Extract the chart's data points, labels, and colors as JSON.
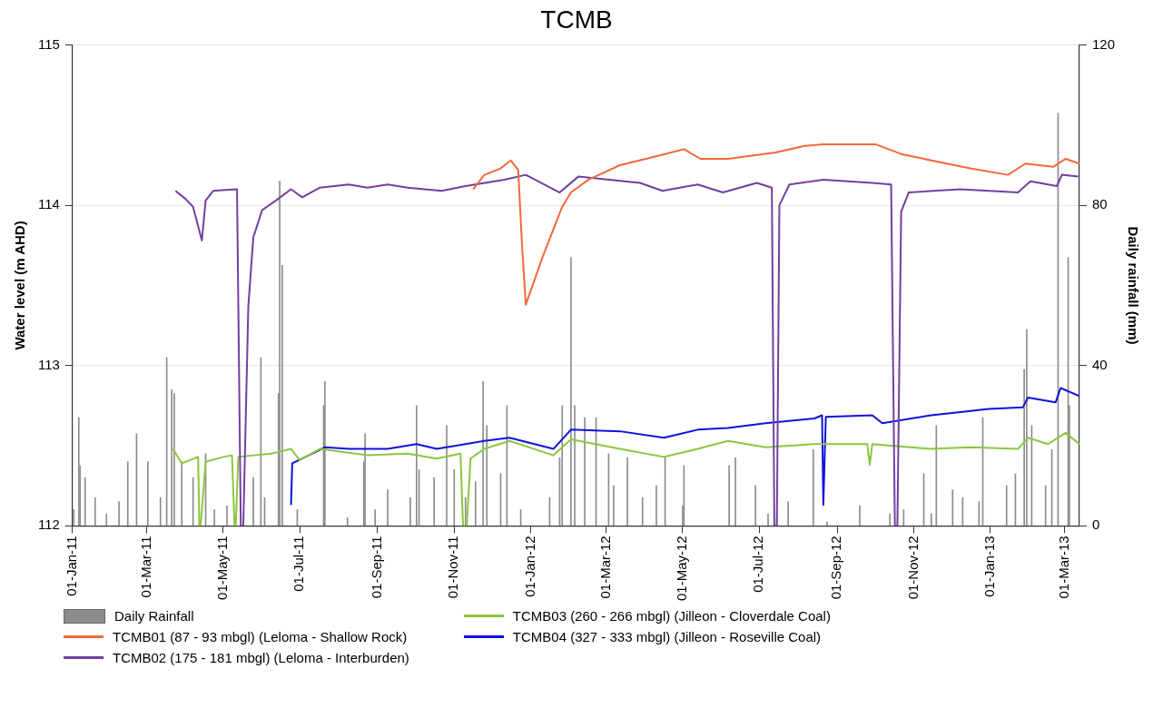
{
  "chart_data": {
    "type": "line",
    "title": "TCMB",
    "ylabel": "Water level (m AHD)",
    "y2label": "Daily rainfall (mm)",
    "xlim": [
      "2011-01-01",
      "2013-03-13"
    ],
    "xticks": [
      {
        "value": "2011-01-01",
        "label": "01-Jan-11"
      },
      {
        "value": "2011-03-01",
        "label": "01-Mar-11"
      },
      {
        "value": "2011-05-01",
        "label": "01-May-11"
      },
      {
        "value": "2011-07-01",
        "label": "01-Jul-11"
      },
      {
        "value": "2011-09-01",
        "label": "01-Sep-11"
      },
      {
        "value": "2011-11-01",
        "label": "01-Nov-11"
      },
      {
        "value": "2012-01-01",
        "label": "01-Jan-12"
      },
      {
        "value": "2012-03-01",
        "label": "01-Mar-12"
      },
      {
        "value": "2012-05-01",
        "label": "01-May-12"
      },
      {
        "value": "2012-07-01",
        "label": "01-Jul-12"
      },
      {
        "value": "2012-09-01",
        "label": "01-Sep-12"
      },
      {
        "value": "2012-11-01",
        "label": "01-Nov-12"
      },
      {
        "value": "2013-01-01",
        "label": "01-Jan-13"
      },
      {
        "value": "2013-03-01",
        "label": "01-Mar-13"
      }
    ],
    "ylim": [
      112,
      115
    ],
    "yticks": [
      112,
      113,
      114,
      115
    ],
    "y2lim": [
      0,
      120
    ],
    "y2ticks": [
      0,
      40,
      80,
      120
    ],
    "grid": "y",
    "legend": "bottom left",
    "marker": "none",
    "series": [
      {
        "name": "Daily Rainfall",
        "type": "bar",
        "axis": "y2",
        "color": "#8c8c8c",
        "x": [
          "2011-01-02",
          "2011-01-06",
          "2011-01-07",
          "2011-01-11",
          "2011-01-19",
          "2011-01-28",
          "2011-02-07",
          "2011-02-14",
          "2011-02-21",
          "2011-03-02",
          "2011-03-12",
          "2011-03-17",
          "2011-03-21",
          "2011-03-23",
          "2011-03-29",
          "2011-04-07",
          "2011-04-17",
          "2011-04-24",
          "2011-05-04",
          "2011-05-25",
          "2011-05-31",
          "2011-06-03",
          "2011-06-14",
          "2011-06-15",
          "2011-06-17",
          "2011-06-29",
          "2011-07-20",
          "2011-07-21",
          "2011-08-08",
          "2011-08-21",
          "2011-08-22",
          "2011-08-30",
          "2011-09-09",
          "2011-09-27",
          "2011-10-02",
          "2011-10-04",
          "2011-10-16",
          "2011-10-26",
          "2011-11-01",
          "2011-11-10",
          "2011-11-18",
          "2011-11-24",
          "2011-11-27",
          "2011-12-08",
          "2011-12-13",
          "2011-12-24",
          "2012-01-16",
          "2012-01-24",
          "2012-01-26",
          "2012-02-02",
          "2012-02-05",
          "2012-02-13",
          "2012-02-22",
          "2012-03-03",
          "2012-03-07",
          "2012-03-18",
          "2012-03-30",
          "2012-04-10",
          "2012-04-17",
          "2012-05-01",
          "2012-05-02",
          "2012-06-07",
          "2012-06-12",
          "2012-06-28",
          "2012-07-08",
          "2012-07-24",
          "2012-08-13",
          "2012-08-24",
          "2012-09-19",
          "2012-10-13",
          "2012-10-24",
          "2012-11-09",
          "2012-11-15",
          "2012-11-19",
          "2012-12-02",
          "2012-12-10",
          "2012-12-23",
          "2012-12-26",
          "2013-01-14",
          "2013-01-21",
          "2013-01-28",
          "2013-01-30",
          "2013-02-03",
          "2013-02-14",
          "2013-02-19",
          "2013-02-24",
          "2013-03-04",
          "2013-03-05"
        ],
        "values": [
          4,
          27,
          15,
          12,
          7,
          3,
          6,
          16,
          23,
          16,
          7,
          42,
          34,
          33,
          16,
          12,
          18,
          4,
          5,
          12,
          42,
          7,
          33,
          86,
          65,
          4,
          30,
          36,
          2,
          16,
          23,
          4,
          9,
          7,
          30,
          14,
          12,
          25,
          14,
          7,
          11,
          36,
          25,
          13,
          30,
          4,
          7,
          17,
          30,
          67,
          30,
          27,
          27,
          18,
          10,
          17,
          7,
          10,
          17,
          5,
          15,
          15,
          17,
          10,
          3,
          6,
          19,
          1,
          5,
          3,
          4,
          13,
          3,
          25,
          9,
          7,
          6,
          27,
          10,
          13,
          39,
          49,
          25,
          10,
          19,
          103,
          67,
          30
        ]
      },
      {
        "name": "TCMB01 (87 - 93 mbgl) (Leloma - Shallow Rock)",
        "color": "#f4683a",
        "x": [
          "2011-11-16",
          "2011-11-25",
          "2011-12-08",
          "2011-12-16",
          "2011-12-22",
          "2011-12-25",
          "2011-12-28",
          "2012-01-11",
          "2012-01-26",
          "2012-02-02",
          "2012-02-16",
          "2012-03-12",
          "2012-04-12",
          "2012-05-02",
          "2012-05-15",
          "2012-06-06",
          "2012-07-14",
          "2012-08-06",
          "2012-08-21",
          "2012-10-02",
          "2012-10-22",
          "2012-11-15",
          "2012-12-16",
          "2013-01-15",
          "2013-01-29",
          "2013-02-20",
          "2013-03-02",
          "2013-03-13"
        ],
        "values": [
          114.1,
          114.19,
          114.23,
          114.28,
          114.22,
          113.75,
          113.38,
          113.69,
          113.99,
          114.08,
          114.16,
          114.25,
          114.31,
          114.35,
          114.29,
          114.29,
          114.33,
          114.37,
          114.38,
          114.38,
          114.32,
          114.28,
          114.23,
          114.19,
          114.26,
          114.24,
          114.29,
          114.26
        ]
      },
      {
        "name": "TCMB02 (175 - 181 mbgl) (Leloma - Interburden)",
        "color": "#7040a0",
        "x": [
          "2011-03-24",
          "2011-04-01",
          "2011-04-07",
          "2011-04-14",
          "2011-04-17",
          "2011-04-23",
          "2011-05-12",
          "2011-05-15",
          "2011-05-17",
          "2011-05-21",
          "2011-05-25",
          "2011-06-01",
          "2011-06-12",
          "2011-06-24",
          "2011-07-03",
          "2011-07-17",
          "2011-08-09",
          "2011-08-24",
          "2011-09-09",
          "2011-09-25",
          "2011-10-22",
          "2011-11-10",
          "2011-12-11",
          "2011-12-28",
          "2012-01-24",
          "2012-02-08",
          "2012-03-28",
          "2012-04-15",
          "2012-05-13",
          "2012-06-02",
          "2012-06-29",
          "2012-07-11",
          "2012-07-13",
          "2012-07-15",
          "2012-07-17",
          "2012-07-25",
          "2012-08-21",
          "2012-09-29",
          "2012-10-14",
          "2012-10-17",
          "2012-10-19",
          "2012-10-22",
          "2012-10-28",
          "2012-12-08",
          "2013-01-23",
          "2013-02-02",
          "2013-02-23",
          "2013-02-27",
          "2013-03-12"
        ],
        "values": [
          114.09,
          114.04,
          113.99,
          113.78,
          114.03,
          114.09,
          114.1,
          112.0,
          112.0,
          113.37,
          113.8,
          113.97,
          114.03,
          114.1,
          114.05,
          114.11,
          114.13,
          114.11,
          114.13,
          114.11,
          114.09,
          114.12,
          114.16,
          114.19,
          114.08,
          114.18,
          114.14,
          114.09,
          114.13,
          114.08,
          114.14,
          114.11,
          112.0,
          112.0,
          114.0,
          114.13,
          114.16,
          114.14,
          114.13,
          112.0,
          112.0,
          113.96,
          114.08,
          114.1,
          114.08,
          114.15,
          114.12,
          114.19,
          114.18
        ]
      },
      {
        "name": "TCMB03 (260 - 266 mbgl) (Jilleon - Cloverdale Coal)",
        "color": "#8cc63f",
        "x": [
          "2011-03-22",
          "2011-03-29",
          "2011-04-11",
          "2011-04-12",
          "2011-04-13",
          "2011-04-17",
          "2011-05-01",
          "2011-05-08",
          "2011-05-10",
          "2011-05-11",
          "2011-05-13",
          "2011-06-08",
          "2011-06-24",
          "2011-07-01",
          "2011-07-17",
          "2011-08-24",
          "2011-09-25",
          "2011-10-18",
          "2011-11-06",
          "2011-11-08",
          "2011-11-11",
          "2011-11-14",
          "2011-11-25",
          "2011-12-15",
          "2012-01-19",
          "2012-02-02",
          "2012-03-12",
          "2012-04-16",
          "2012-05-13",
          "2012-06-06",
          "2012-07-06",
          "2012-08-14",
          "2012-09-25",
          "2012-09-27",
          "2012-09-29",
          "2012-11-15",
          "2012-12-16",
          "2013-01-23",
          "2013-01-31",
          "2013-02-16",
          "2013-03-02",
          "2013-03-13"
        ],
        "values": [
          112.48,
          112.39,
          112.43,
          112.0,
          112.0,
          112.4,
          112.43,
          112.44,
          112.0,
          112.0,
          112.43,
          112.45,
          112.48,
          112.41,
          112.48,
          112.44,
          112.45,
          112.42,
          112.45,
          112.0,
          112.0,
          112.42,
          112.48,
          112.53,
          112.44,
          112.54,
          112.48,
          112.43,
          112.48,
          112.53,
          112.49,
          112.51,
          112.51,
          112.38,
          112.51,
          112.48,
          112.49,
          112.48,
          112.55,
          112.51,
          112.58,
          112.51
        ]
      },
      {
        "name": "TCMB04 (327 - 333 mbgl) (Jilleon - Roseville Coal)",
        "color": "#1010e0",
        "x": [
          "2011-06-24",
          "2011-06-25",
          "2011-07-03",
          "2011-07-21",
          "2011-08-09",
          "2011-09-09",
          "2011-10-02",
          "2011-10-18",
          "2011-11-25",
          "2011-12-15",
          "2012-01-19",
          "2012-02-02",
          "2012-03-12",
          "2012-04-16",
          "2012-05-13",
          "2012-06-06",
          "2012-07-06",
          "2012-08-14",
          "2012-08-20",
          "2012-08-21",
          "2012-08-23",
          "2012-09-29",
          "2012-10-07",
          "2012-11-15",
          "2012-12-31",
          "2013-01-27",
          "2013-01-31",
          "2013-02-22",
          "2013-02-26",
          "2013-03-13"
        ],
        "values": [
          112.13,
          112.39,
          112.42,
          112.49,
          112.48,
          112.48,
          112.51,
          112.48,
          112.53,
          112.55,
          112.48,
          112.6,
          112.59,
          112.55,
          112.6,
          112.61,
          112.64,
          112.67,
          112.69,
          112.13,
          112.68,
          112.69,
          112.64,
          112.69,
          112.73,
          112.74,
          112.8,
          112.77,
          112.86,
          112.81
        ]
      }
    ]
  }
}
